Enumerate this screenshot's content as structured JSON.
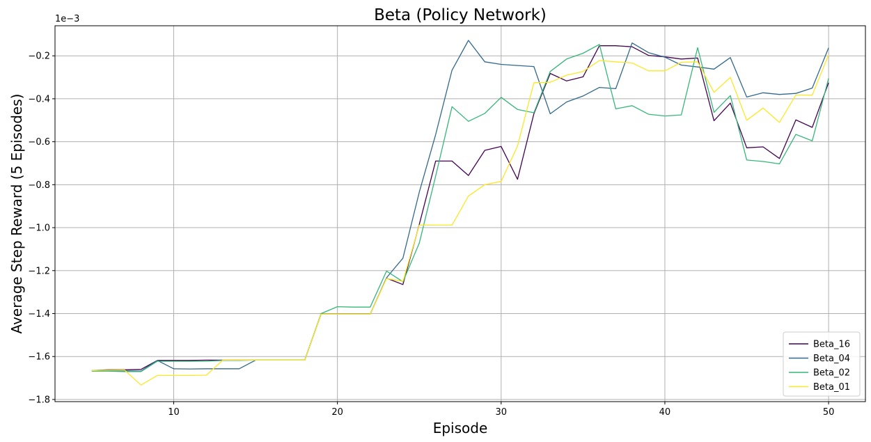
{
  "chart_data": {
    "type": "line",
    "title": "Beta (Policy Network)",
    "xlabel": "Episode",
    "ylabel": "Average Step Reward (5 Episodes)",
    "scale_label": "1e−3",
    "xlim": [
      2.75,
      52.25
    ],
    "ylim": [
      -1.81,
      -0.06
    ],
    "xticks": [
      10,
      20,
      30,
      40,
      50
    ],
    "yticks": [
      -1.8,
      -1.6,
      -1.4,
      -1.2,
      -1.0,
      -0.8,
      -0.6,
      -0.4,
      -0.2
    ],
    "ytick_labels": [
      "−1.8",
      "−1.6",
      "−1.4",
      "−1.2",
      "−1.0",
      "−0.8",
      "−0.6",
      "−0.4",
      "−0.2"
    ],
    "grid": true,
    "legend_position": "lower-right",
    "x": [
      5,
      6,
      7,
      8,
      9,
      10,
      11,
      12,
      13,
      14,
      15,
      16,
      17,
      18,
      19,
      20,
      21,
      22,
      23,
      24,
      25,
      26,
      27,
      28,
      29,
      30,
      31,
      32,
      33,
      34,
      35,
      36,
      37,
      38,
      39,
      40,
      41,
      42,
      43,
      44,
      45,
      46,
      47,
      48,
      49,
      50
    ],
    "series": [
      {
        "name": "Beta_16",
        "color": "#440154",
        "values": [
          -1.665,
          -1.662,
          -1.662,
          -1.66,
          -1.618,
          -1.618,
          -1.618,
          -1.617,
          -1.617,
          -1.617,
          -1.617,
          -1.617,
          -1.617,
          -1.617,
          -1.403,
          -1.403,
          -1.403,
          -1.403,
          -1.235,
          -1.265,
          -0.985,
          -0.69,
          -0.69,
          -0.757,
          -0.64,
          -0.622,
          -0.775,
          -0.47,
          -0.282,
          -0.317,
          -0.298,
          -0.153,
          -0.153,
          -0.158,
          -0.198,
          -0.205,
          -0.215,
          -0.21,
          -0.502,
          -0.42,
          -0.628,
          -0.624,
          -0.678,
          -0.498,
          -0.533,
          -0.325
        ]
      },
      {
        "name": "Beta_04",
        "color": "#31688e",
        "values": [
          -1.667,
          -1.667,
          -1.667,
          -1.668,
          -1.618,
          -1.657,
          -1.658,
          -1.657,
          -1.657,
          -1.657,
          -1.617,
          -1.617,
          -1.617,
          -1.617,
          -1.403,
          -1.403,
          -1.403,
          -1.403,
          -1.233,
          -1.142,
          -0.835,
          -0.567,
          -0.267,
          -0.128,
          -0.228,
          -0.24,
          -0.245,
          -0.25,
          -0.47,
          -0.415,
          -0.387,
          -0.347,
          -0.353,
          -0.14,
          -0.185,
          -0.206,
          -0.243,
          -0.252,
          -0.262,
          -0.208,
          -0.392,
          -0.372,
          -0.38,
          -0.375,
          -0.35,
          -0.163
        ]
      },
      {
        "name": "Beta_02",
        "color": "#35b779",
        "values": [
          -1.668,
          -1.668,
          -1.67,
          -1.67,
          -1.622,
          -1.622,
          -1.622,
          -1.622,
          -1.618,
          -1.618,
          -1.617,
          -1.617,
          -1.617,
          -1.617,
          -1.4,
          -1.368,
          -1.37,
          -1.37,
          -1.202,
          -1.252,
          -1.072,
          -0.76,
          -0.437,
          -0.505,
          -0.468,
          -0.393,
          -0.45,
          -0.465,
          -0.273,
          -0.215,
          -0.188,
          -0.147,
          -0.447,
          -0.432,
          -0.472,
          -0.48,
          -0.475,
          -0.162,
          -0.463,
          -0.385,
          -0.685,
          -0.692,
          -0.703,
          -0.566,
          -0.596,
          -0.305
        ]
      },
      {
        "name": "Beta_01",
        "color": "#fde725",
        "values": [
          -1.665,
          -1.664,
          -1.663,
          -1.733,
          -1.688,
          -1.688,
          -1.688,
          -1.687,
          -1.617,
          -1.617,
          -1.617,
          -1.617,
          -1.617,
          -1.617,
          -1.403,
          -1.403,
          -1.403,
          -1.403,
          -1.237,
          -1.25,
          -0.988,
          -0.988,
          -0.988,
          -0.853,
          -0.8,
          -0.785,
          -0.62,
          -0.325,
          -0.323,
          -0.29,
          -0.273,
          -0.222,
          -0.228,
          -0.233,
          -0.27,
          -0.27,
          -0.23,
          -0.228,
          -0.37,
          -0.3,
          -0.5,
          -0.443,
          -0.51,
          -0.382,
          -0.383,
          -0.195
        ]
      }
    ]
  }
}
